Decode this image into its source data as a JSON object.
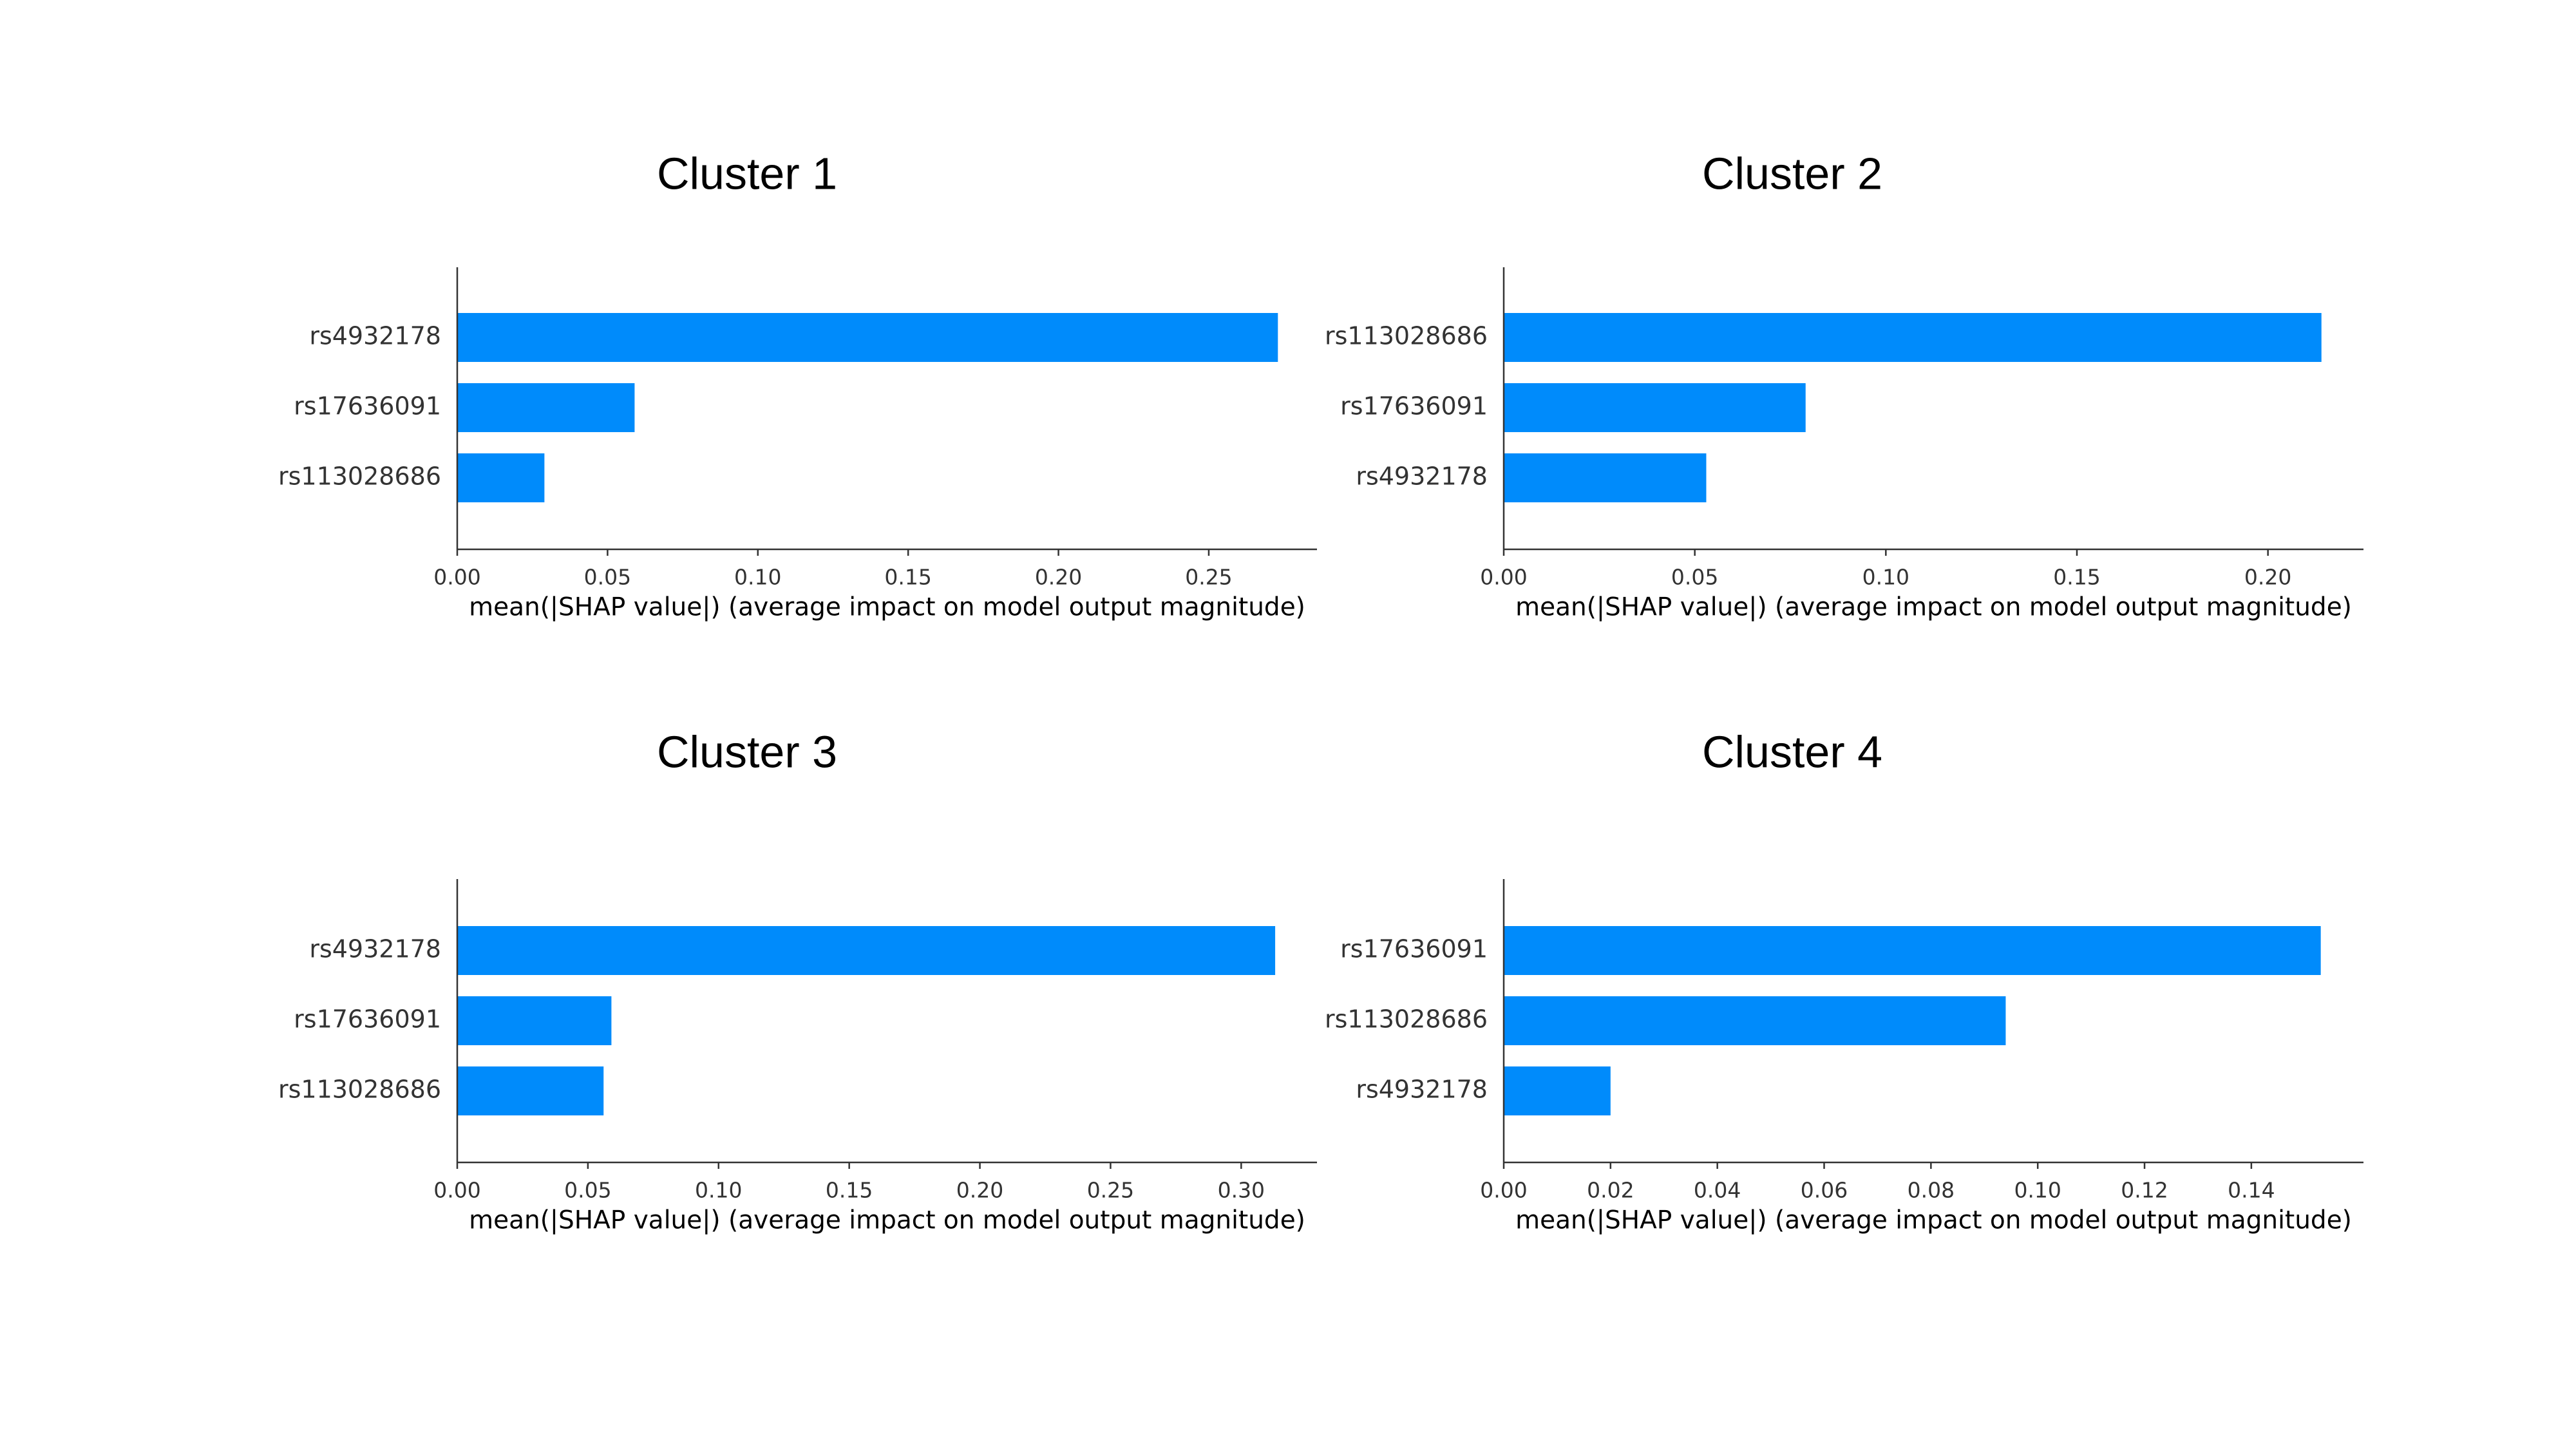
{
  "colors": {
    "bar": "#008bfb",
    "axis": "#333333",
    "text": "#333333",
    "title": "#000000"
  },
  "chart_data": [
    {
      "type": "bar",
      "orientation": "horizontal",
      "title": "Cluster 1",
      "xlabel": "mean(|SHAP value|) (average impact on model output magnitude)",
      "ylabel": "",
      "categories": [
        "rs4932178",
        "rs17636091",
        "rs113028686"
      ],
      "values": [
        0.273,
        0.059,
        0.029
      ],
      "xlim": [
        0,
        0.286
      ],
      "xticks": [
        0.0,
        0.05,
        0.1,
        0.15,
        0.2,
        0.25
      ],
      "xtick_labels": [
        "0.00",
        "0.05",
        "0.10",
        "0.15",
        "0.20",
        "0.25"
      ],
      "grid": false
    },
    {
      "type": "bar",
      "orientation": "horizontal",
      "title": "Cluster 2",
      "xlabel": "mean(|SHAP value|) (average impact on model output magnitude)",
      "ylabel": "",
      "categories": [
        "rs113028686",
        "rs17636091",
        "rs4932178"
      ],
      "values": [
        0.214,
        0.079,
        0.053
      ],
      "xlim": [
        0,
        0.225
      ],
      "xticks": [
        0.0,
        0.05,
        0.1,
        0.15,
        0.2
      ],
      "xtick_labels": [
        "0.00",
        "0.05",
        "0.10",
        "0.15",
        "0.20"
      ],
      "grid": false
    },
    {
      "type": "bar",
      "orientation": "horizontal",
      "title": "Cluster 3",
      "xlabel": "mean(|SHAP value|) (average impact on model output magnitude)",
      "ylabel": "",
      "categories": [
        "rs4932178",
        "rs17636091",
        "rs113028686"
      ],
      "values": [
        0.313,
        0.059,
        0.056
      ],
      "xlim": [
        0,
        0.329
      ],
      "xticks": [
        0.0,
        0.05,
        0.1,
        0.15,
        0.2,
        0.25,
        0.3
      ],
      "xtick_labels": [
        "0.00",
        "0.05",
        "0.10",
        "0.15",
        "0.20",
        "0.25",
        "0.30"
      ],
      "grid": false
    },
    {
      "type": "bar",
      "orientation": "horizontal",
      "title": "Cluster 4",
      "xlabel": "mean(|SHAP value|) (average impact on model output magnitude)",
      "ylabel": "",
      "categories": [
        "rs17636091",
        "rs113028686",
        "rs4932178"
      ],
      "values": [
        0.153,
        0.094,
        0.02
      ],
      "xlim": [
        0,
        0.161
      ],
      "xticks": [
        0.0,
        0.02,
        0.04,
        0.06,
        0.08,
        0.1,
        0.12,
        0.14
      ],
      "xtick_labels": [
        "0.00",
        "0.02",
        "0.04",
        "0.06",
        "0.08",
        "0.10",
        "0.12",
        "0.14"
      ],
      "grid": false
    }
  ]
}
